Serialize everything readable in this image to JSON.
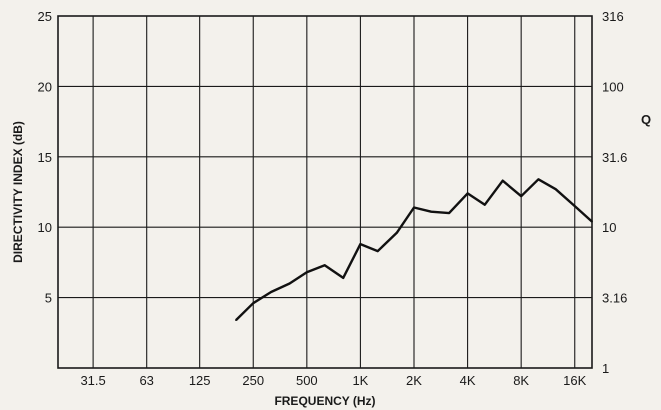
{
  "chart_data": {
    "type": "line",
    "xlabel": "FREQUENCY (Hz)",
    "ylabel": "DIRECTIVITY INDEX (dB)",
    "y2label": "Q",
    "x_scale": "log",
    "x_ticks": [
      "31.5",
      "63",
      "125",
      "250",
      "500",
      "1K",
      "2K",
      "4K",
      "8K",
      "16K"
    ],
    "x_tick_values": [
      31.5,
      63,
      125,
      250,
      500,
      1000,
      2000,
      4000,
      8000,
      16000
    ],
    "xlim": [
      20,
      20000
    ],
    "ylim": [
      0,
      25
    ],
    "y_ticks": [
      "25",
      "20",
      "15",
      "10",
      "5"
    ],
    "y_tick_values": [
      25,
      20,
      15,
      10,
      5
    ],
    "y2_ticks": [
      "316",
      "100",
      "31.6",
      "10",
      "3.16",
      "1"
    ],
    "y2_tick_values": [
      25,
      20,
      15,
      10,
      5,
      0
    ],
    "grid": true,
    "series": [
      {
        "x": [
          200,
          250,
          315,
          400,
          500,
          630,
          800,
          1000,
          1250,
          1600,
          2000,
          2500,
          3150,
          4000,
          5000,
          6300,
          8000,
          10000,
          12500,
          16000,
          20000
        ],
        "values": [
          3.4,
          4.6,
          5.4,
          6.0,
          6.8,
          7.3,
          6.4,
          8.8,
          8.3,
          9.6,
          11.4,
          11.1,
          11.0,
          12.4,
          11.6,
          13.3,
          12.2,
          13.4,
          12.7,
          11.5,
          10.4
        ]
      }
    ]
  }
}
